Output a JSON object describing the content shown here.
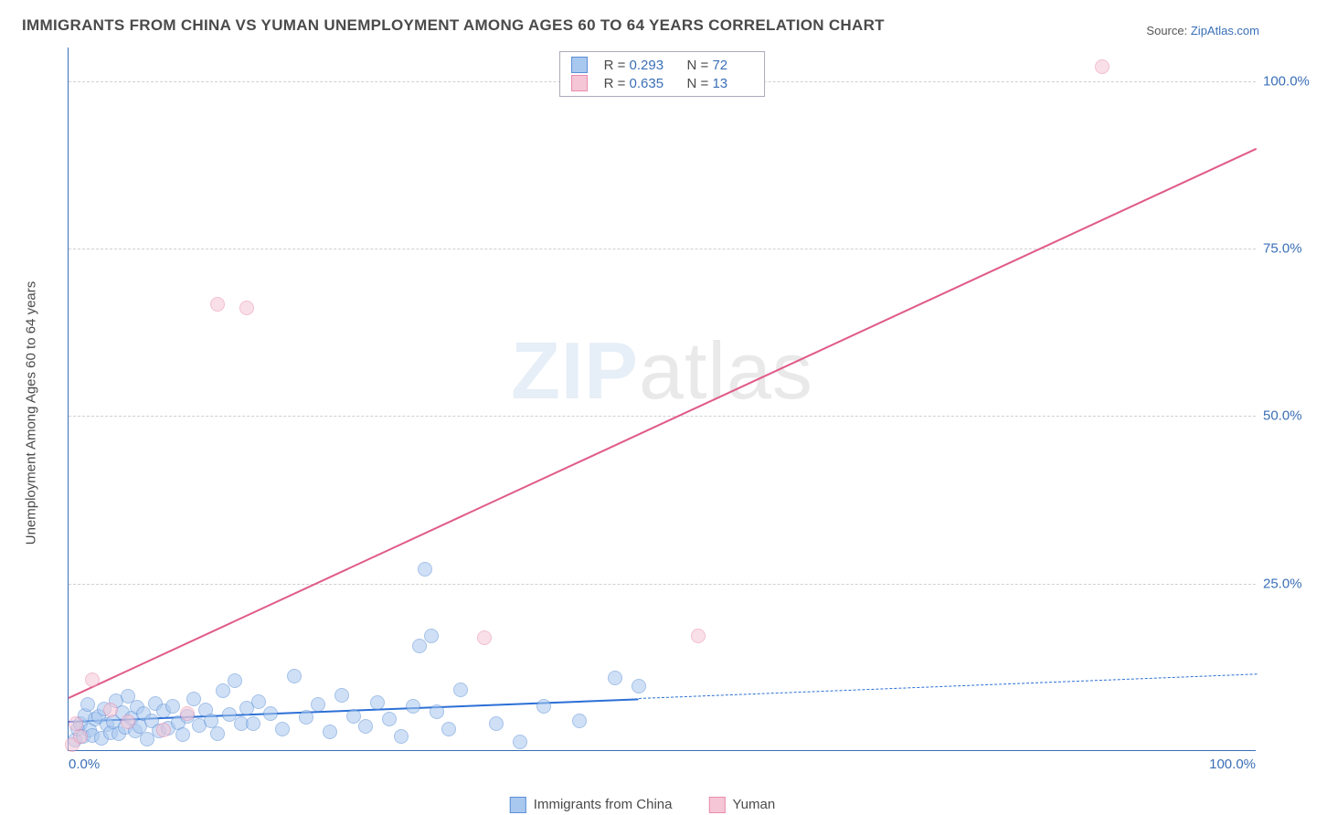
{
  "title": "IMMIGRANTS FROM CHINA VS YUMAN UNEMPLOYMENT AMONG AGES 60 TO 64 YEARS CORRELATION CHART",
  "source_label": "Source:",
  "source_value": "ZipAtlas.com",
  "ylabel": "Unemployment Among Ages 60 to 64 years",
  "watermark_a": "ZIP",
  "watermark_b": "atlas",
  "chart": {
    "type": "scatter",
    "xlim": [
      0,
      100
    ],
    "ylim": [
      0,
      105
    ],
    "background_color": "#ffffff",
    "grid_color": "#d0d0d0",
    "axis_color": "#3a6fb7",
    "tick_color": "#3a6fb7",
    "tick_fontsize": 15,
    "label_fontsize": 15,
    "xticks": [
      "0.0%",
      "100.0%"
    ],
    "yticks": [
      {
        "v": 25,
        "label": "25.0%"
      },
      {
        "v": 50,
        "label": "50.0%"
      },
      {
        "v": 75,
        "label": "75.0%"
      },
      {
        "v": 100,
        "label": "100.0%"
      }
    ],
    "marker_radius": 8,
    "marker_opacity": 0.55,
    "series": [
      {
        "name": "Immigrants from China",
        "color_fill": "#a9c8ef",
        "color_stroke": "#5b8fd6",
        "R": "0.293",
        "N": "72",
        "trend": {
          "color": "#2b6fd6",
          "width": 2.5,
          "solid_from_x": 0,
          "solid_to_x": 48,
          "y_at_x0": 4.5,
          "y_at_x100": 11.5
        },
        "points": [
          [
            0.5,
            1.5
          ],
          [
            0.8,
            3.2
          ],
          [
            1.0,
            4.0
          ],
          [
            1.2,
            2.0
          ],
          [
            1.4,
            5.2
          ],
          [
            1.6,
            6.8
          ],
          [
            1.8,
            3.0
          ],
          [
            2.0,
            2.2
          ],
          [
            2.2,
            4.6
          ],
          [
            2.5,
            5.0
          ],
          [
            2.8,
            1.8
          ],
          [
            3.0,
            6.2
          ],
          [
            3.2,
            3.8
          ],
          [
            3.5,
            2.6
          ],
          [
            3.8,
            4.2
          ],
          [
            4.0,
            7.4
          ],
          [
            4.2,
            2.4
          ],
          [
            4.5,
            5.6
          ],
          [
            4.8,
            3.4
          ],
          [
            5.0,
            8.0
          ],
          [
            5.3,
            4.8
          ],
          [
            5.6,
            2.8
          ],
          [
            5.8,
            6.4
          ],
          [
            6.0,
            3.6
          ],
          [
            6.3,
            5.4
          ],
          [
            6.6,
            1.6
          ],
          [
            7.0,
            4.4
          ],
          [
            7.3,
            7.0
          ],
          [
            7.6,
            2.9
          ],
          [
            8.0,
            5.8
          ],
          [
            8.4,
            3.3
          ],
          [
            8.8,
            6.6
          ],
          [
            9.2,
            4.1
          ],
          [
            9.6,
            2.3
          ],
          [
            10.0,
            5.1
          ],
          [
            10.5,
            7.6
          ],
          [
            11.0,
            3.7
          ],
          [
            11.5,
            6.0
          ],
          [
            12.0,
            4.3
          ],
          [
            12.5,
            2.5
          ],
          [
            13.0,
            8.8
          ],
          [
            13.5,
            5.3
          ],
          [
            14.0,
            10.4
          ],
          [
            14.5,
            3.9
          ],
          [
            15.0,
            6.3
          ],
          [
            15.5,
            4.0
          ],
          [
            16.0,
            7.2
          ],
          [
            17.0,
            5.5
          ],
          [
            18.0,
            3.1
          ],
          [
            19.0,
            11.0
          ],
          [
            20.0,
            4.9
          ],
          [
            21.0,
            6.8
          ],
          [
            22.0,
            2.7
          ],
          [
            23.0,
            8.2
          ],
          [
            24.0,
            5.0
          ],
          [
            25.0,
            3.5
          ],
          [
            26.0,
            7.1
          ],
          [
            27.0,
            4.6
          ],
          [
            28.0,
            2.1
          ],
          [
            29.0,
            6.5
          ],
          [
            30.0,
            27.0
          ],
          [
            31.0,
            5.7
          ],
          [
            32.0,
            3.2
          ],
          [
            33.0,
            9.0
          ],
          [
            29.5,
            15.5
          ],
          [
            30.5,
            17.0
          ],
          [
            36.0,
            4.0
          ],
          [
            38.0,
            1.2
          ],
          [
            40.0,
            6.5
          ],
          [
            43.0,
            4.4
          ],
          [
            46.0,
            10.8
          ],
          [
            48.0,
            9.5
          ]
        ]
      },
      {
        "name": "Yuman",
        "color_fill": "#f5c6d6",
        "color_stroke": "#e98bad",
        "R": "0.635",
        "N": "13",
        "trend": {
          "color": "#e05a8a",
          "width": 2,
          "solid_from_x": 0,
          "solid_to_x": 100,
          "y_at_x0": 8,
          "y_at_x100": 90
        },
        "points": [
          [
            0.3,
            0.8
          ],
          [
            0.6,
            4.0
          ],
          [
            1.0,
            2.0
          ],
          [
            2.0,
            10.5
          ],
          [
            3.5,
            6.0
          ],
          [
            5.0,
            4.2
          ],
          [
            8.0,
            3.0
          ],
          [
            10.0,
            5.5
          ],
          [
            12.5,
            66.5
          ],
          [
            15.0,
            66.0
          ],
          [
            35.0,
            16.8
          ],
          [
            53.0,
            17.0
          ],
          [
            87.0,
            102.0
          ]
        ]
      }
    ]
  },
  "legend_bottom": [
    {
      "label": "Immigrants from China",
      "fill": "#a9c8ef",
      "stroke": "#5b8fd6"
    },
    {
      "label": "Yuman",
      "fill": "#f5c6d6",
      "stroke": "#e98bad"
    }
  ]
}
